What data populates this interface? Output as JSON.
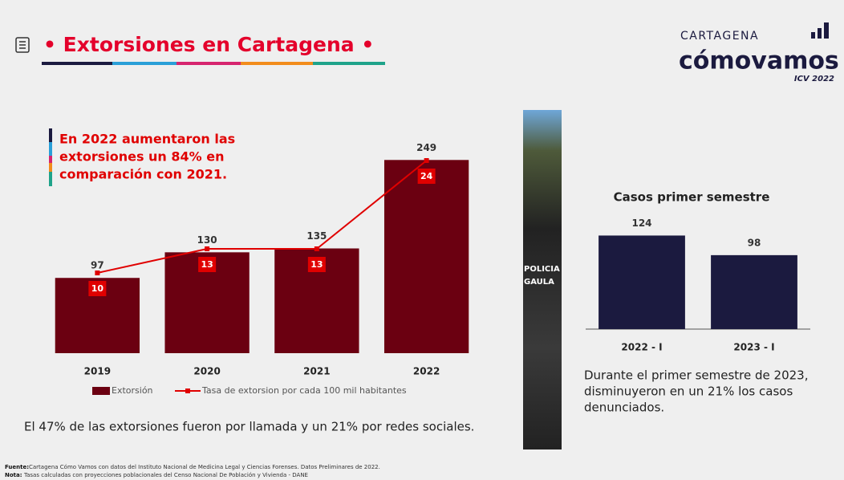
{
  "header": {
    "title": "• Extorsiones en Cartagena •",
    "brand_top": "CARTAGENA",
    "brand": "cómovamos",
    "brand_sub": "ICV 2022"
  },
  "photo_text": [
    "POLICIA",
    "GAULA"
  ],
  "chart_data": [
    {
      "type": "bar",
      "annotation": [
        "En 2022 aumentaron las",
        "extorsiones un 84% en",
        "comparación con 2021."
      ],
      "categories": [
        "2019",
        "2020",
        "2021",
        "2022"
      ],
      "ylim": [
        0,
        300
      ],
      "y2lim": [
        0,
        29
      ],
      "series": [
        {
          "name": "Extorsión",
          "color": "#6b0011",
          "values": [
            97,
            130,
            135,
            249
          ]
        },
        {
          "name": "Tasa de extorsion por cada 100 mil habitantes",
          "color": "#e00000",
          "kind": "line",
          "axis": "y2",
          "values": [
            10,
            13,
            13,
            24
          ]
        }
      ],
      "footnote": "El 47% de las extorsiones fueron por llamada y un 21% por redes sociales."
    },
    {
      "type": "bar",
      "title": "Casos primer semestre",
      "categories": [
        "2022 - I",
        "2023 - I"
      ],
      "ylim": [
        0,
        150
      ],
      "color": "#1b1a3f",
      "values": [
        124,
        98
      ],
      "note": [
        "Durante el primer semestre de 2023,",
        "disminuyeron en un 21% los casos",
        "denunciados."
      ]
    }
  ],
  "source": {
    "label": "Fuente:",
    "text": "Cartagena Cómo Vamos con datos del Instituto Nacional de Medicina Legal y Ciencias Forenses. Datos Preliminares de 2022."
  },
  "nota": {
    "label": "Nota:",
    "text": "Tasas calculadas con proyecciones poblacionales del Censo Nacional De Población y Vivienda - DANE"
  }
}
